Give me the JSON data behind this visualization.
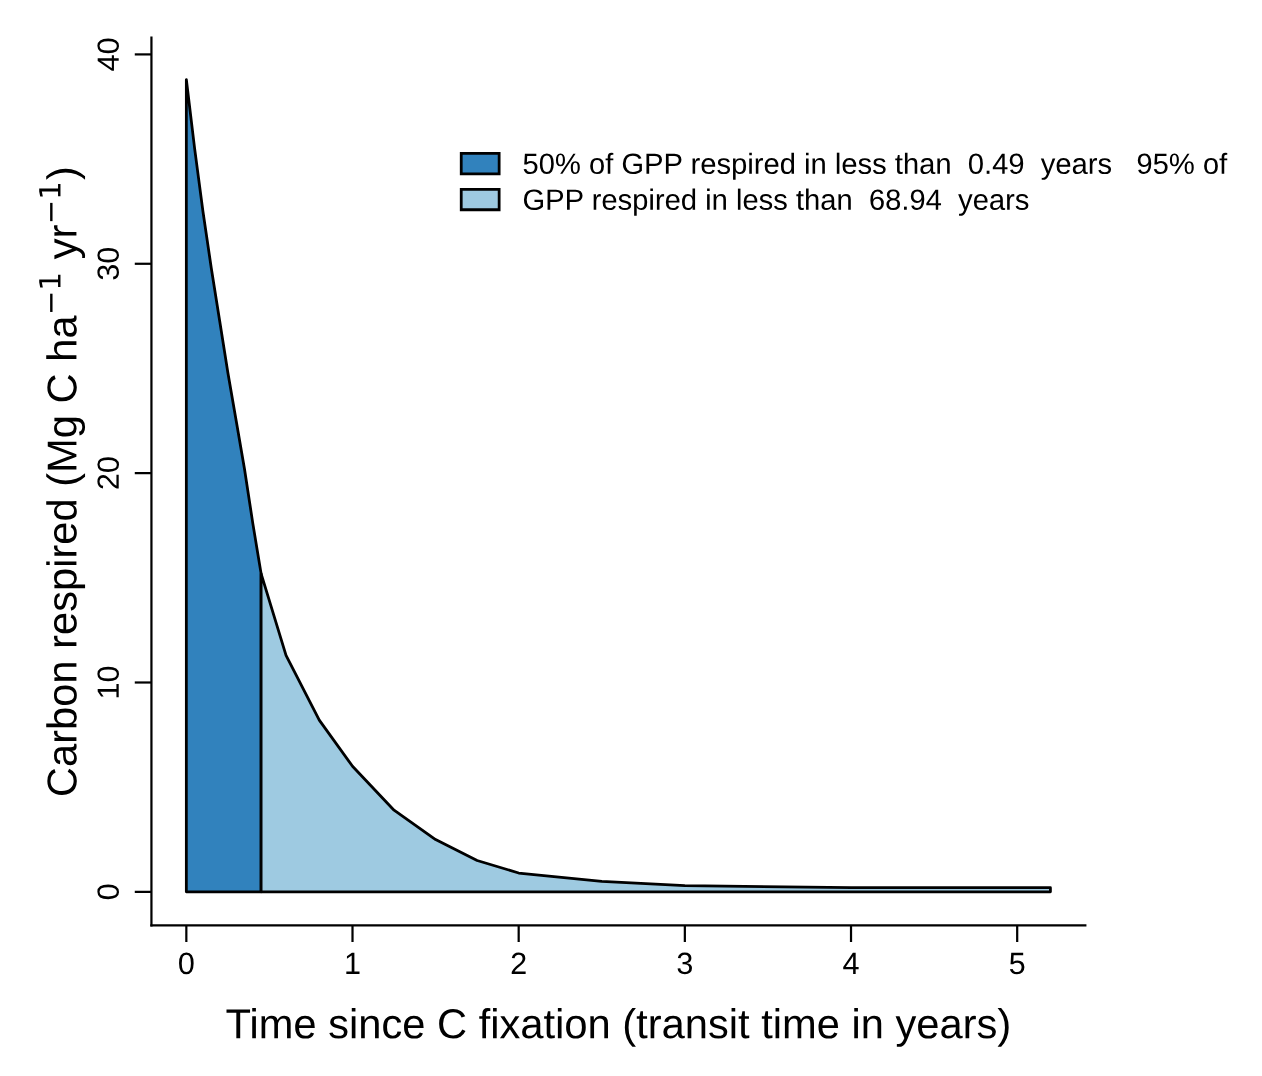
{
  "chart_data": {
    "type": "area",
    "xlabel": "Time since C fixation (transit time in years)",
    "ylabel": "Carbon respired (Mg C ha$^{−1}$ yr$^{−1}$)",
    "series": [
      {
        "name": "50% of GPP respired in less than  0.49  years   95% of",
        "color": "#3182bd",
        "x": [
          0,
          0.05,
          0.1,
          0.15,
          0.2,
          0.25,
          0.3,
          0.35,
          0.4,
          0.45
        ],
        "values": [
          38.8,
          35.5,
          32.5,
          29.8,
          27.3,
          24.8,
          22.5,
          20.2,
          17.6,
          15.2
        ]
      },
      {
        "name": "GPP respired in less than  68.94  years",
        "color": "#9ecae1",
        "x": [
          0.45,
          0.6,
          0.8,
          1.0,
          1.25,
          1.5,
          1.75,
          2.0,
          2.5,
          3.0,
          4.0,
          5.2
        ],
        "values": [
          15.2,
          11.3,
          8.2,
          6.0,
          3.9,
          2.5,
          1.5,
          0.9,
          0.5,
          0.3,
          0.2,
          0.2
        ]
      }
    ],
    "xlim": [
      -0.21,
      5.41
    ],
    "ylim": [
      -1.6,
      40.8
    ],
    "xticks": [
      0,
      1,
      2,
      3,
      4,
      5
    ],
    "yticks": [
      0,
      10,
      20,
      30,
      40
    ],
    "grid": false,
    "legend": "top right"
  }
}
